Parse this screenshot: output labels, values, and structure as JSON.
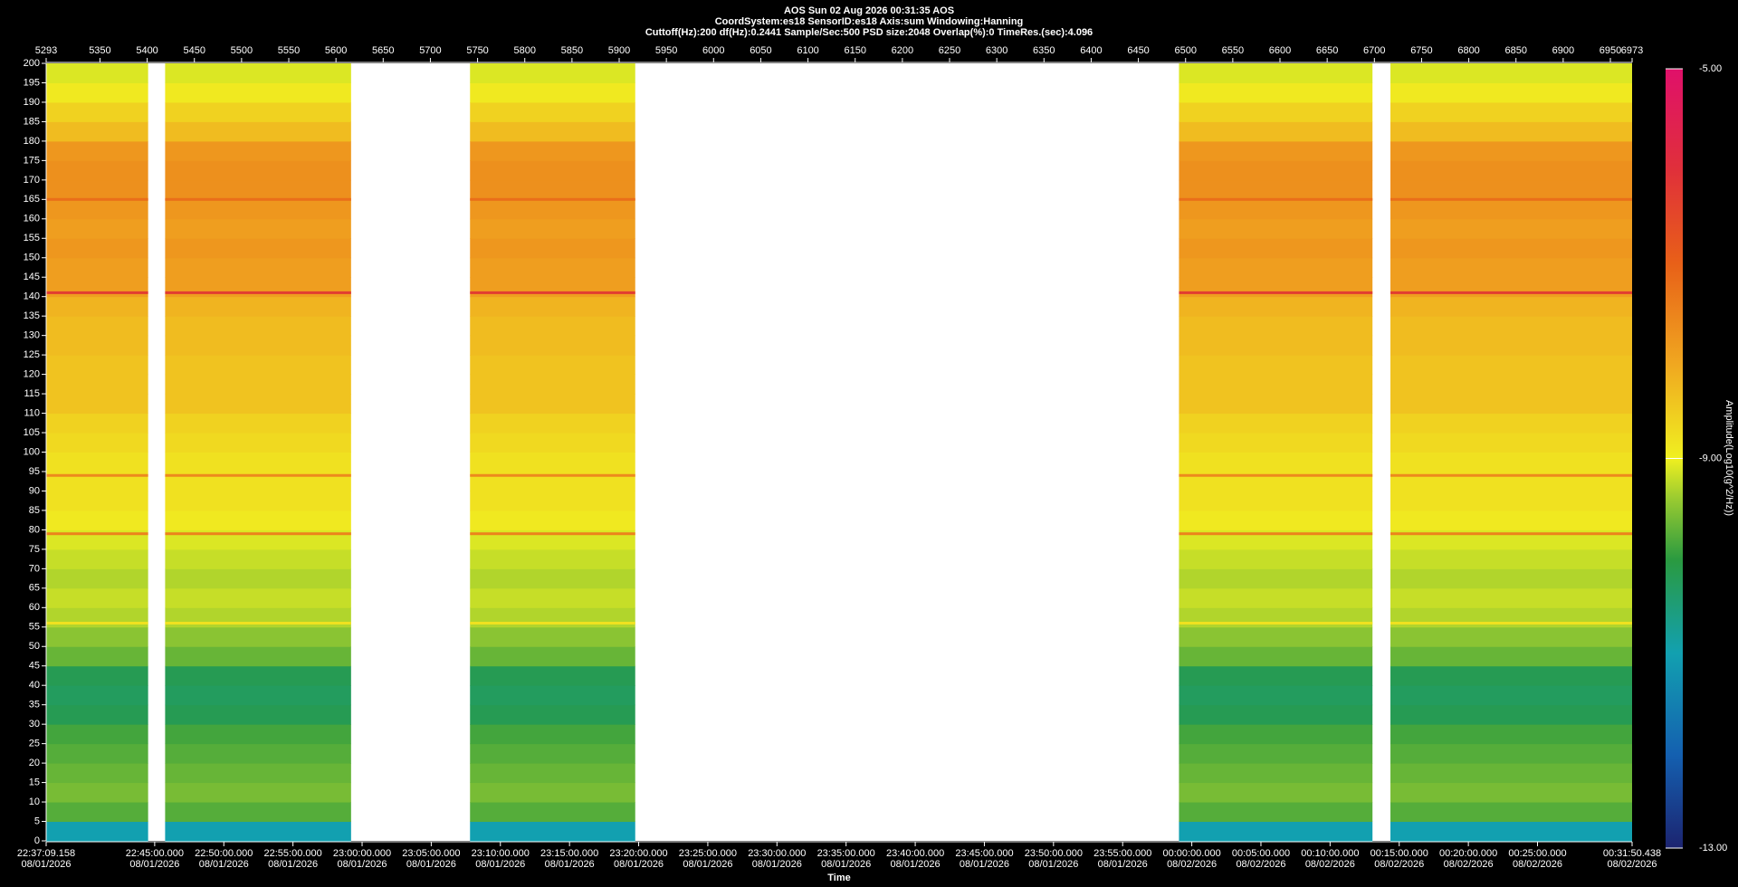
{
  "chart_data": {
    "type": "spectrogram",
    "title": "AOS  Sun 02 Aug 2026 00:31:35  AOS",
    "subtitle": "CoordSystem:es18   SensorID:es18    Axis:sum    Windowing:Hanning",
    "info": "Cuttoff(Hz):200      df(Hz):0.2441      Sample/Sec:500      PSD size:2048      Overlap(%):0      TimeRes.(sec):4.096",
    "x_label": "Time",
    "colorbar_label": "Amplitude(Log10(g^2/Hz))",
    "xlim": [
      5293,
      6973
    ],
    "xticks": [
      5293,
      5350,
      5400,
      5450,
      5500,
      5550,
      5600,
      5650,
      5700,
      5750,
      5800,
      5850,
      5900,
      5950,
      6000,
      6050,
      6100,
      6150,
      6200,
      6250,
      6300,
      6350,
      6400,
      6450,
      6500,
      6550,
      6600,
      6650,
      6700,
      6750,
      6800,
      6850,
      6900,
      6950,
      6973
    ],
    "ylim": [
      0,
      200
    ],
    "yticks": [
      0,
      5,
      10,
      15,
      20,
      25,
      30,
      35,
      40,
      45,
      50,
      55,
      60,
      65,
      70,
      75,
      80,
      85,
      90,
      95,
      100,
      105,
      110,
      115,
      120,
      125,
      130,
      135,
      140,
      145,
      150,
      155,
      160,
      165,
      170,
      175,
      180,
      185,
      190,
      195,
      200
    ],
    "tlim": [
      0,
      6881.28
    ],
    "time_ticks": [
      {
        "value": 0,
        "label": "22:37:09.158",
        "date": "08/01/2026"
      },
      {
        "value": 470.842,
        "label": "22:45:00.000",
        "date": "08/01/2026"
      },
      {
        "value": 770.842,
        "label": "22:50:00.000",
        "date": "08/01/2026"
      },
      {
        "value": 1070.842,
        "label": "22:55:00.000",
        "date": "08/01/2026"
      },
      {
        "value": 1370.842,
        "label": "23:00:00.000",
        "date": "08/01/2026"
      },
      {
        "value": 1670.842,
        "label": "23:05:00.000",
        "date": "08/01/2026"
      },
      {
        "value": 1970.842,
        "label": "23:10:00.000",
        "date": "08/01/2026"
      },
      {
        "value": 2270.842,
        "label": "23:15:00.000",
        "date": "08/01/2026"
      },
      {
        "value": 2570.842,
        "label": "23:20:00.000",
        "date": "08/01/2026"
      },
      {
        "value": 2870.842,
        "label": "23:25:00.000",
        "date": "08/01/2026"
      },
      {
        "value": 3170.842,
        "label": "23:30:00.000",
        "date": "08/01/2026"
      },
      {
        "value": 3470.842,
        "label": "23:35:00.000",
        "date": "08/01/2026"
      },
      {
        "value": 3770.842,
        "label": "23:40:00.000",
        "date": "08/01/2026"
      },
      {
        "value": 4070.842,
        "label": "23:45:00.000",
        "date": "08/01/2026"
      },
      {
        "value": 4370.842,
        "label": "23:50:00.000",
        "date": "08/01/2026"
      },
      {
        "value": 4670.842,
        "label": "23:55:00.000",
        "date": "08/01/2026"
      },
      {
        "value": 4970.842,
        "label": "00:00:00.000",
        "date": "08/02/2026"
      },
      {
        "value": 5270.842,
        "label": "00:05:00.000",
        "date": "08/02/2026"
      },
      {
        "value": 5570.842,
        "label": "00:10:00.000",
        "date": "08/02/2026"
      },
      {
        "value": 5870.842,
        "label": "00:15:00.000",
        "date": "08/02/2026"
      },
      {
        "value": 6170.842,
        "label": "00:20:00.000",
        "date": "08/02/2026"
      },
      {
        "value": 6470.842,
        "label": "00:25:00.000",
        "date": "08/02/2026"
      },
      {
        "value": 6881.28,
        "label": "00:31:50.438",
        "date": "08/02/2026"
      }
    ],
    "clim": [
      -13,
      -5
    ],
    "cticks": [
      {
        "value": -5,
        "label": "-5.00"
      },
      {
        "value": -9,
        "label": "-9.00"
      },
      {
        "value": -13,
        "label": "-13.00"
      }
    ],
    "segments": [
      [
        5293,
        5401
      ],
      [
        5419,
        5616
      ],
      [
        5742,
        5917
      ],
      [
        6493,
        6698
      ],
      [
        6717,
        6973
      ]
    ],
    "frequency_bins": [
      0,
      5,
      10,
      15,
      20,
      25,
      30,
      35,
      40,
      45,
      50,
      55,
      60,
      65,
      70,
      75,
      80,
      85,
      90,
      95,
      100,
      105,
      110,
      115,
      120,
      125,
      130,
      135,
      140,
      145,
      150,
      155,
      160,
      165,
      170,
      175,
      180,
      185,
      190,
      195,
      200
    ],
    "amplitudes": [
      -11,
      -9.8,
      -9.6,
      -9.7,
      -9.8,
      -9.9,
      -10.2,
      -10.3,
      -10.2,
      -9.7,
      -9.5,
      -9.3,
      -9.2,
      -9.3,
      -9.2,
      -9.1,
      -8.9,
      -8.8,
      -8.8,
      -8.8,
      -8.7,
      -8.6,
      -8.4,
      -8.4,
      -8.4,
      -8.3,
      -8.3,
      -8.2,
      -7.9,
      -7.9,
      -7.8,
      -7.9,
      -7.8,
      -7.7,
      -7.7,
      -7.8,
      -8.3,
      -8.6,
      -8.9,
      -9.1
    ],
    "line_frequencies": [
      141,
      165,
      94,
      79,
      56
    ],
    "line_amplitudes": [
      -6.3,
      -7.2,
      -7.6,
      -7.5,
      -8.8
    ]
  }
}
